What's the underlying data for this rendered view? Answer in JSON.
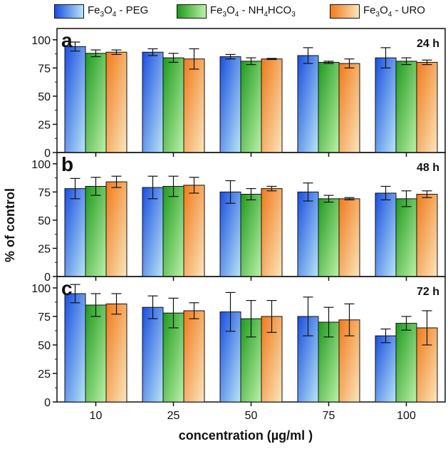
{
  "legend": [
    {
      "base": "Fe",
      "sub1": "3",
      "mid": "O",
      "sub2": "4",
      "rest": " - PEG",
      "rest_sub": "",
      "rest_tail": ""
    },
    {
      "base": "Fe",
      "sub1": "3",
      "mid": "O",
      "sub2": "4",
      "rest": " - NH",
      "rest_sub": "4",
      "rest_tail": "HCO",
      "tail_sub": "3"
    },
    {
      "base": "Fe",
      "sub1": "3",
      "mid": "O",
      "sub2": "4",
      "rest": " - URO",
      "rest_sub": "",
      "rest_tail": ""
    }
  ],
  "chart_data": [
    {
      "type": "bar",
      "panel": "a",
      "time": "24 h",
      "categories": [
        "10",
        "25",
        "50",
        "75",
        "100"
      ],
      "ylim": [
        0,
        110
      ],
      "yticks": [
        0,
        25,
        50,
        75,
        100
      ],
      "series": [
        {
          "name": "Fe3O4 - PEG",
          "values": [
            94,
            89,
            85,
            86,
            84
          ],
          "errors": [
            4,
            3,
            2,
            7,
            9
          ]
        },
        {
          "name": "Fe3O4 - NH4HCO3",
          "values": [
            88,
            84,
            81,
            80,
            81
          ],
          "errors": [
            3,
            4,
            3,
            1,
            3
          ]
        },
        {
          "name": "Fe3O4 - URO",
          "values": [
            89,
            83,
            83,
            79,
            80
          ],
          "errors": [
            2,
            9,
            0.5,
            4,
            2
          ]
        }
      ]
    },
    {
      "type": "bar",
      "panel": "b",
      "time": "48 h",
      "categories": [
        "10",
        "25",
        "50",
        "75",
        "100"
      ],
      "ylim": [
        0,
        110
      ],
      "yticks": [
        0,
        25,
        50,
        75,
        100
      ],
      "series": [
        {
          "name": "Fe3O4 - PEG",
          "values": [
            78,
            79,
            75,
            75,
            74
          ],
          "errors": [
            9,
            10,
            10,
            8,
            6
          ]
        },
        {
          "name": "Fe3O4 - NH4HCO3",
          "values": [
            80,
            80,
            73,
            69,
            69
          ],
          "errors": [
            8,
            9,
            5,
            3,
            7
          ]
        },
        {
          "name": "Fe3O4 - URO",
          "values": [
            84,
            81,
            78,
            69,
            73
          ],
          "errors": [
            5,
            7,
            2,
            1,
            3
          ]
        }
      ]
    },
    {
      "type": "bar",
      "panel": "c",
      "time": "72 h",
      "categories": [
        "10",
        "25",
        "50",
        "75",
        "100"
      ],
      "ylim": [
        0,
        110
      ],
      "yticks": [
        0,
        25,
        50,
        75,
        100
      ],
      "series": [
        {
          "name": "Fe3O4 - PEG",
          "values": [
            95,
            83,
            79,
            75,
            58
          ],
          "errors": [
            8,
            10,
            17,
            17,
            6
          ]
        },
        {
          "name": "Fe3O4 - NH4HCO3",
          "values": [
            85,
            78,
            73,
            70,
            69
          ],
          "errors": [
            10,
            13,
            16,
            13,
            6
          ]
        },
        {
          "name": "Fe3O4 - URO",
          "values": [
            86,
            80,
            75,
            72,
            65
          ],
          "errors": [
            9,
            7,
            14,
            14,
            15
          ]
        }
      ]
    }
  ],
  "axes": {
    "ylabel": "% of control",
    "xlabel": "concentration (µg/ml )"
  },
  "colors": {
    "peg": [
      "#1a4fe0",
      "#b9e6f7"
    ],
    "nh4": [
      "#1f9a1f",
      "#bdf2a8"
    ],
    "uro": [
      "#f07a1a",
      "#fbe6bd"
    ],
    "axis": "#111111"
  }
}
